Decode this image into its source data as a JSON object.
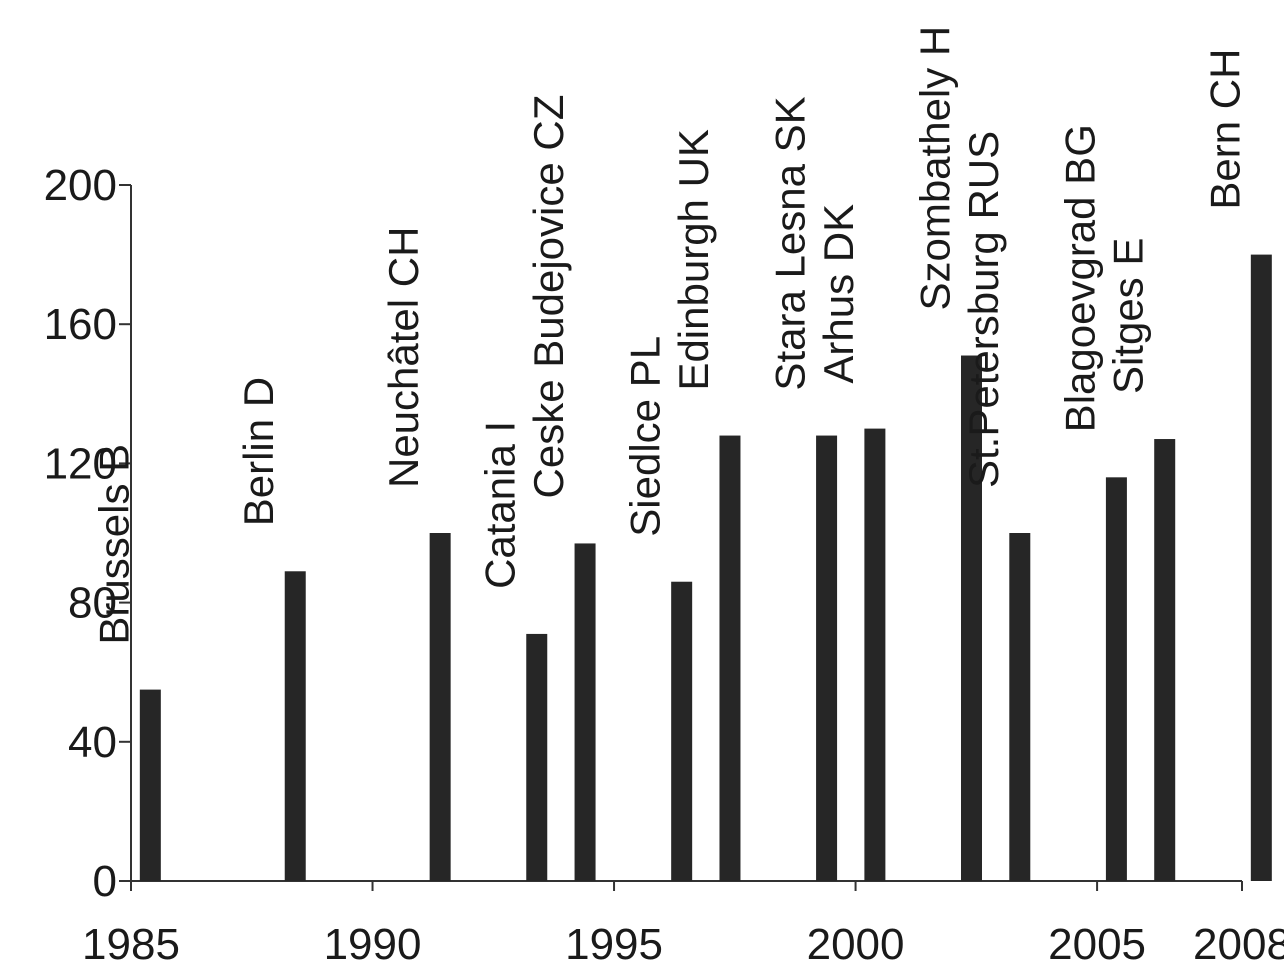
{
  "chart_data": {
    "type": "bar",
    "title": "",
    "xlabel": "",
    "ylabel": "",
    "xlim": [
      1985,
      2008
    ],
    "ylim": [
      0,
      200
    ],
    "yticks": [
      0,
      40,
      80,
      120,
      160,
      200
    ],
    "xticks": [
      "1985",
      "1990",
      "1995",
      "2000",
      "2005",
      "2008"
    ],
    "grid": false,
    "legend": "none",
    "bar_color": "#262626",
    "series": [
      {
        "points": [
          {
            "year": 1985.4,
            "value": 55,
            "label": "Brussels B"
          },
          {
            "year": 1988.4,
            "value": 89,
            "label": "Berlin D"
          },
          {
            "year": 1991.4,
            "value": 100,
            "label": "Neuchâtel CH"
          },
          {
            "year": 1993.4,
            "value": 71,
            "label": "Catania I"
          },
          {
            "year": 1994.4,
            "value": 97,
            "label": "Ceske Budejovice CZ"
          },
          {
            "year": 1996.4,
            "value": 86,
            "label": "Siedlce PL"
          },
          {
            "year": 1997.4,
            "value": 128,
            "label": "Edinburgh UK"
          },
          {
            "year": 1999.4,
            "value": 128,
            "label": "Stara Lesna SK"
          },
          {
            "year": 2000.4,
            "value": 130,
            "label": "Arhus DK"
          },
          {
            "year": 2002.4,
            "value": 151,
            "label": "Szombathely H"
          },
          {
            "year": 2003.4,
            "value": 100,
            "label": "St.Petersburg RUS"
          },
          {
            "year": 2005.4,
            "value": 116,
            "label": "Blagoevgrad BG"
          },
          {
            "year": 2006.4,
            "value": 127,
            "label": "Sitges E"
          },
          {
            "year": 2008.4,
            "value": 180,
            "label": "Bern CH"
          }
        ]
      }
    ]
  }
}
